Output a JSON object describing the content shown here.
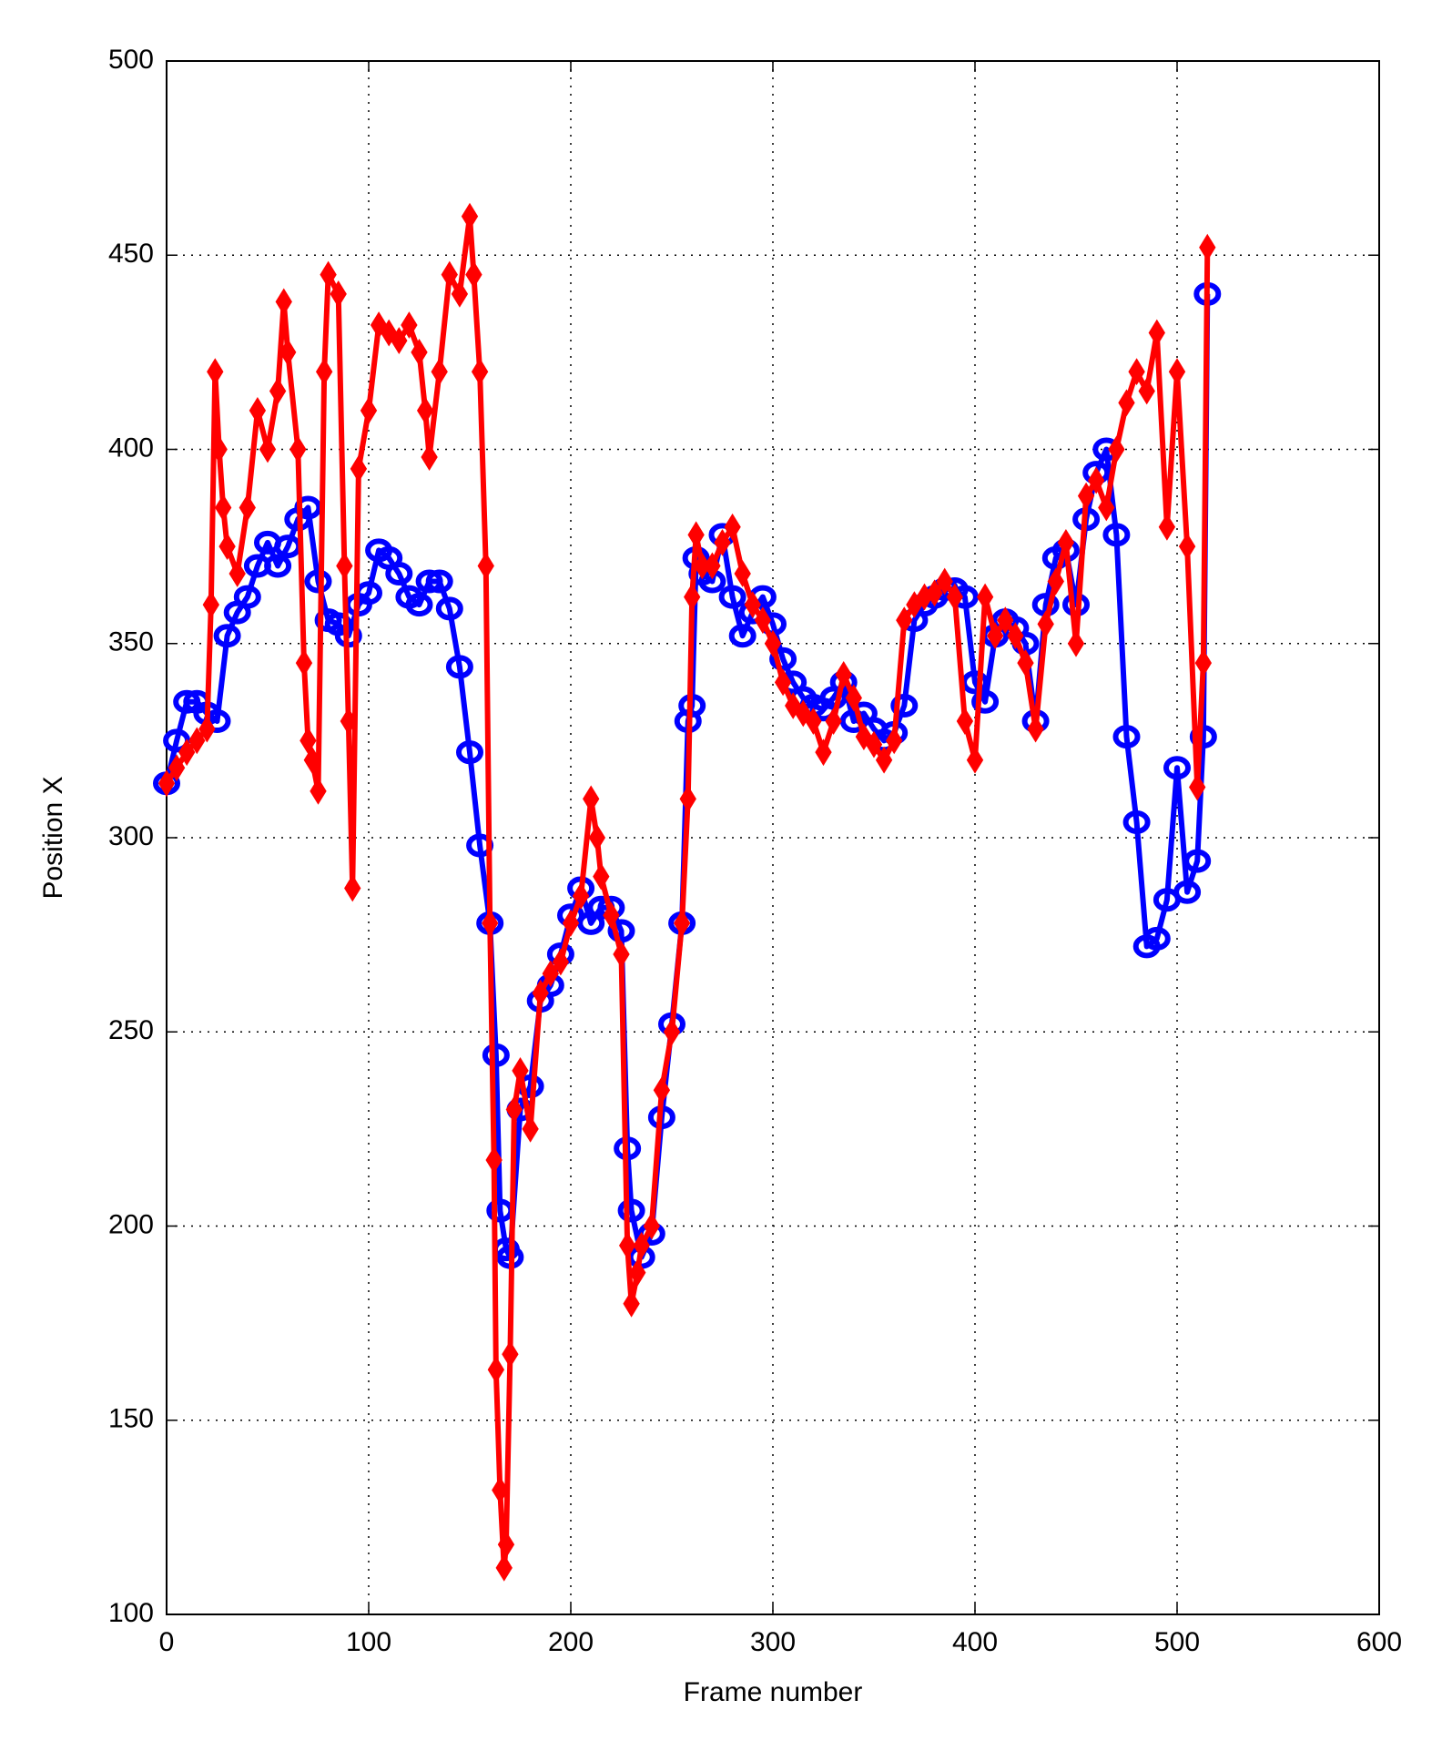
{
  "chart_data": {
    "type": "line",
    "x_label": "Frame number",
    "y_label": "Position X",
    "xlim": [
      0,
      600
    ],
    "ylim": [
      100,
      500
    ],
    "xticks": [
      0,
      100,
      200,
      300,
      400,
      500,
      600
    ],
    "yticks": [
      100,
      150,
      200,
      250,
      300,
      350,
      400,
      450,
      500
    ],
    "grid": true,
    "series": [
      {
        "color": "#0000ff",
        "marker": "circle",
        "x": [
          0,
          5,
          10,
          15,
          20,
          25,
          30,
          35,
          40,
          45,
          50,
          55,
          60,
          65,
          70,
          75,
          80,
          85,
          90,
          95,
          100,
          105,
          110,
          115,
          120,
          125,
          130,
          135,
          140,
          145,
          150,
          155,
          160,
          163,
          165,
          168,
          170,
          175,
          180,
          185,
          190,
          195,
          200,
          205,
          210,
          215,
          220,
          225,
          228,
          230,
          235,
          240,
          245,
          250,
          255,
          258,
          260,
          262,
          265,
          270,
          275,
          280,
          285,
          290,
          295,
          300,
          305,
          310,
          315,
          320,
          325,
          330,
          335,
          340,
          345,
          350,
          355,
          360,
          365,
          370,
          375,
          380,
          385,
          390,
          395,
          400,
          405,
          410,
          415,
          420,
          425,
          430,
          435,
          440,
          445,
          450,
          455,
          460,
          465,
          470,
          475,
          480,
          485,
          490,
          495,
          500,
          505,
          510,
          513,
          515
        ],
        "values": [
          314,
          325,
          335,
          335,
          332,
          330,
          352,
          358,
          362,
          370,
          376,
          370,
          375,
          382,
          385,
          366,
          356,
          355,
          352,
          360,
          363,
          374,
          372,
          368,
          362,
          360,
          366,
          366,
          359,
          344,
          322,
          298,
          278,
          244,
          204,
          194,
          192,
          230,
          236,
          258,
          262,
          270,
          280,
          287,
          278,
          282,
          282,
          276,
          220,
          204,
          192,
          198,
          228,
          252,
          278,
          330,
          334,
          372,
          368,
          366,
          378,
          362,
          352,
          358,
          362,
          355,
          346,
          340,
          336,
          334,
          333,
          336,
          340,
          330,
          332,
          328,
          325,
          327,
          334,
          356,
          360,
          362,
          364,
          364,
          362,
          340,
          335,
          352,
          356,
          354,
          350,
          330,
          360,
          372,
          374,
          360,
          382,
          394,
          400,
          378,
          326,
          304,
          272,
          274,
          284,
          318,
          286,
          294,
          326,
          440
        ]
      },
      {
        "color": "#ff0000",
        "marker": "diamond",
        "x": [
          0,
          5,
          10,
          15,
          20,
          22,
          24,
          26,
          28,
          30,
          35,
          40,
          45,
          50,
          55,
          58,
          60,
          65,
          68,
          70,
          72,
          75,
          78,
          80,
          85,
          88,
          90,
          92,
          95,
          100,
          105,
          110,
          115,
          120,
          125,
          128,
          130,
          135,
          140,
          145,
          150,
          152,
          155,
          158,
          160,
          162,
          163,
          165,
          167,
          168,
          170,
          172,
          175,
          180,
          185,
          190,
          195,
          200,
          205,
          210,
          213,
          215,
          220,
          225,
          228,
          230,
          233,
          235,
          240,
          245,
          250,
          255,
          258,
          260,
          262,
          265,
          270,
          275,
          280,
          285,
          290,
          295,
          300,
          305,
          310,
          315,
          320,
          325,
          330,
          335,
          340,
          345,
          350,
          355,
          360,
          365,
          370,
          375,
          380,
          385,
          390,
          395,
          400,
          405,
          410,
          415,
          420,
          425,
          430,
          435,
          440,
          445,
          450,
          455,
          460,
          465,
          470,
          475,
          480,
          485,
          490,
          495,
          500,
          505,
          510,
          513,
          515
        ],
        "values": [
          314,
          318,
          322,
          325,
          328,
          360,
          420,
          400,
          385,
          375,
          368,
          385,
          410,
          400,
          415,
          438,
          425,
          400,
          345,
          325,
          320,
          312,
          420,
          445,
          440,
          370,
          330,
          287,
          395,
          410,
          432,
          430,
          428,
          432,
          425,
          410,
          398,
          420,
          445,
          440,
          460,
          445,
          420,
          370,
          278,
          217,
          163,
          132,
          112,
          118,
          167,
          230,
          240,
          225,
          260,
          265,
          268,
          278,
          285,
          310,
          300,
          290,
          280,
          270,
          195,
          180,
          188,
          195,
          200,
          235,
          250,
          278,
          310,
          362,
          378,
          370,
          370,
          376,
          380,
          368,
          360,
          356,
          350,
          340,
          334,
          332,
          330,
          322,
          330,
          342,
          336,
          326,
          324,
          320,
          325,
          356,
          360,
          362,
          363,
          366,
          362,
          330,
          320,
          362,
          352,
          356,
          352,
          345,
          328,
          355,
          366,
          376,
          350,
          388,
          392,
          385,
          400,
          412,
          420,
          415,
          430,
          380,
          420,
          375,
          313,
          345,
          452
        ]
      }
    ]
  }
}
